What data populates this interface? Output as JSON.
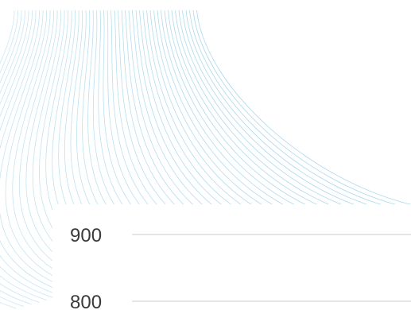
{
  "colors": {
    "background": "#ffffff",
    "wave_lines": "#9fd3ea",
    "gridline": "#d6d6d6",
    "tick_text": "#3a3a3a"
  },
  "chart_data": {
    "type": "line",
    "series": [],
    "y_ticks": [
      900,
      800
    ],
    "ylim": [
      800,
      900
    ],
    "grid": true
  }
}
